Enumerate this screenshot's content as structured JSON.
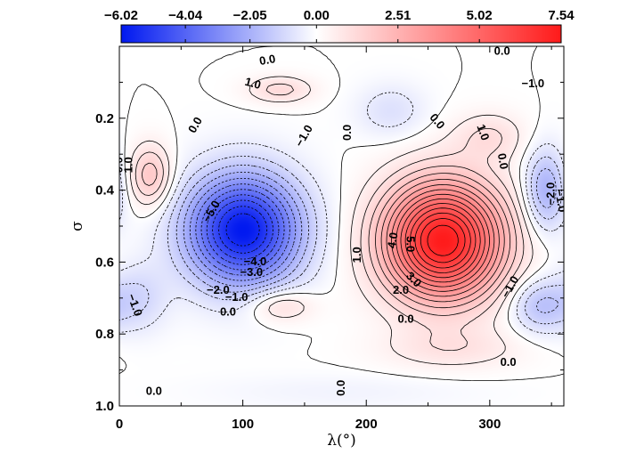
{
  "chart_data": {
    "type": "heatmap",
    "title": "",
    "xlabel": "λ(°)",
    "ylabel": "σ",
    "xlim": [
      0,
      360
    ],
    "ylim": [
      1.0,
      0.0
    ],
    "x_ticks": [
      0,
      100,
      200,
      300
    ],
    "x_tick_labels": [
      "0",
      "100",
      "200",
      "300"
    ],
    "y_ticks": [
      0.2,
      0.4,
      0.6,
      0.8,
      1.0
    ],
    "y_tick_labels": [
      "0.2",
      "0.4",
      "0.6",
      "0.8",
      "1.0"
    ],
    "colorbar": {
      "min": -6.02,
      "max": 7.54,
      "tick_values": [
        -6.02,
        -4.04,
        -2.05,
        0.0,
        2.51,
        5.02,
        7.54
      ],
      "tick_labels": [
        "−6.02",
        "−4.04",
        "−2.05",
        "0.00",
        "2.51",
        "5.02",
        "7.54"
      ],
      "colors": {
        "negative": "#0018f0",
        "zero": "#ffffff",
        "positive": "#ff1a1a"
      }
    },
    "features": [
      {
        "name": "cold-core",
        "lon": 100,
        "sigma": 0.51,
        "value": -6.0,
        "width_lon": 48,
        "width_sigma": 0.16
      },
      {
        "name": "warm-core",
        "lon": 262,
        "sigma": 0.54,
        "value": 7.5,
        "width_lon": 50,
        "width_sigma": 0.17
      },
      {
        "name": "warm-west",
        "lon": 25,
        "sigma": 0.36,
        "value": 1.9,
        "width_lon": 18,
        "width_sigma": 0.09
      },
      {
        "name": "warm-upper",
        "lon": 130,
        "sigma": 0.12,
        "value": 1.2,
        "width_lon": 28,
        "width_sigma": 0.04
      },
      {
        "name": "warm-upper-east",
        "lon": 300,
        "sigma": 0.25,
        "value": 1.0,
        "width_lon": 30,
        "width_sigma": 0.07
      },
      {
        "name": "warm-lower",
        "lon": 130,
        "sigma": 0.72,
        "value": 1.3,
        "width_lon": 28,
        "width_sigma": 0.05
      },
      {
        "name": "warm-lower-east",
        "lon": 270,
        "sigma": 0.84,
        "value": 0.8,
        "width_lon": 60,
        "width_sigma": 0.06
      },
      {
        "name": "cool-east",
        "lon": 345,
        "sigma": 0.4,
        "value": -2.1,
        "width_lon": 18,
        "width_sigma": 0.12
      },
      {
        "name": "cool-southeast",
        "lon": 340,
        "sigma": 0.72,
        "value": -1.6,
        "width_lon": 25,
        "width_sigma": 0.08
      },
      {
        "name": "cool-southwest",
        "lon": 15,
        "sigma": 0.7,
        "value": -1.0,
        "width_lon": 25,
        "width_sigma": 0.1
      },
      {
        "name": "cool-upper-mid",
        "lon": 220,
        "sigma": 0.18,
        "value": -0.8,
        "width_lon": 30,
        "width_sigma": 0.08
      },
      {
        "name": "cool-bottom",
        "lon": 180,
        "sigma": 0.96,
        "value": -0.3,
        "width_lon": 120,
        "width_sigma": 0.05
      }
    ],
    "contour_labels": [
      {
        "text": "0.0",
        "lon": 120,
        "sigma": 0.04,
        "angle": -10
      },
      {
        "text": "0.0",
        "lon": 310,
        "sigma": 0.015,
        "angle": 0
      },
      {
        "text": "1.0",
        "lon": 108,
        "sigma": 0.105,
        "angle": 15
      },
      {
        "text": "−1.0",
        "lon": 335,
        "sigma": 0.105,
        "angle": 0
      },
      {
        "text": "0.0",
        "lon": 62,
        "sigma": 0.22,
        "angle": -60
      },
      {
        "text": "−1.0",
        "lon": 150,
        "sigma": 0.25,
        "angle": -60
      },
      {
        "text": "0.0",
        "lon": 185,
        "sigma": 0.24,
        "angle": -90
      },
      {
        "text": "0.0",
        "lon": 257,
        "sigma": 0.21,
        "angle": 50
      },
      {
        "text": "1.0",
        "lon": 294,
        "sigma": 0.24,
        "angle": 70
      },
      {
        "text": "0.0",
        "lon": 310,
        "sigma": 0.32,
        "angle": 80
      },
      {
        "text": "0.0",
        "lon": 0,
        "sigma": 0.33,
        "angle": -90
      },
      {
        "text": "1.0",
        "lon": 8,
        "sigma": 0.33,
        "angle": -90
      },
      {
        "text": "−2.0",
        "lon": 350,
        "sigma": 0.41,
        "angle": -90
      },
      {
        "text": "−1.0",
        "lon": 357,
        "sigma": 0.43,
        "angle": 80
      },
      {
        "text": "−5.0",
        "lon": 75,
        "sigma": 0.46,
        "angle": -60
      },
      {
        "text": "4.0",
        "lon": 222,
        "sigma": 0.54,
        "angle": -80
      },
      {
        "text": "5.0",
        "lon": 235,
        "sigma": 0.55,
        "angle": 90
      },
      {
        "text": "1.0",
        "lon": 193,
        "sigma": 0.58,
        "angle": -90
      },
      {
        "text": "−4.0",
        "lon": 110,
        "sigma": 0.6,
        "angle": 0
      },
      {
        "text": "−3.0",
        "lon": 107,
        "sigma": 0.63,
        "angle": 0
      },
      {
        "text": "−2.0",
        "lon": 80,
        "sigma": 0.68,
        "angle": 0
      },
      {
        "text": "−1.0",
        "lon": 95,
        "sigma": 0.7,
        "angle": 0
      },
      {
        "text": "3.0",
        "lon": 238,
        "sigma": 0.65,
        "angle": 45
      },
      {
        "text": "2.0",
        "lon": 228,
        "sigma": 0.68,
        "angle": 0
      },
      {
        "text": "−1.0",
        "lon": 317,
        "sigma": 0.67,
        "angle": -60
      },
      {
        "text": "0.0",
        "lon": 88,
        "sigma": 0.74,
        "angle": 0
      },
      {
        "text": "0.0",
        "lon": 232,
        "sigma": 0.76,
        "angle": 0
      },
      {
        "text": "−1.0",
        "lon": 12,
        "sigma": 0.72,
        "angle": 70
      },
      {
        "text": "0.0",
        "lon": 315,
        "sigma": 0.88,
        "angle": 0
      },
      {
        "text": "0.0",
        "lon": 28,
        "sigma": 0.96,
        "angle": 0
      },
      {
        "text": "0.0",
        "lon": 180,
        "sigma": 0.95,
        "angle": -90
      }
    ]
  }
}
